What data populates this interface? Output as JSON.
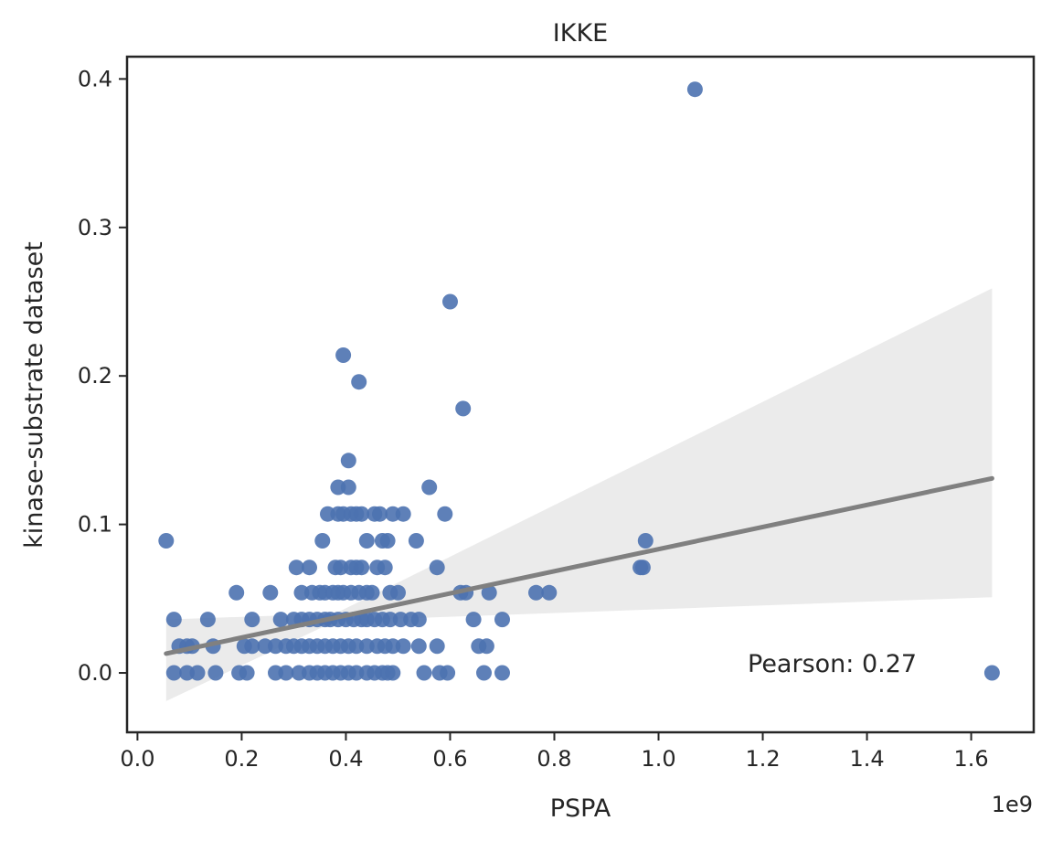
{
  "chart_data": {
    "type": "scatter",
    "title": "IKKE",
    "xlabel": "PSPA",
    "ylabel": "kinase-substrate dataset",
    "x_offset_text": "1e9",
    "annotation": "Pearson: 0.27",
    "xlim": [
      -0.02,
      1.72
    ],
    "ylim": [
      -0.04,
      0.415
    ],
    "x_ticks": [
      0.0,
      0.2,
      0.4,
      0.6,
      0.8,
      1.0,
      1.2,
      1.4,
      1.6
    ],
    "x_tick_labels": [
      "0.0",
      "0.2",
      "0.4",
      "0.6",
      "0.8",
      "1.0",
      "1.2",
      "1.4",
      "1.6"
    ],
    "y_ticks": [
      0.0,
      0.1,
      0.2,
      0.3,
      0.4
    ],
    "y_tick_labels": [
      "0.0",
      "0.1",
      "0.2",
      "0.3",
      "0.4"
    ],
    "grid": false,
    "colors": {
      "points": "#4c72b0",
      "regression_line": "#808080",
      "confidence_band": "#ebebeb"
    },
    "regression": {
      "x": [
        0.055,
        1.64
      ],
      "y": [
        0.013,
        0.131
      ],
      "ci_lower": [
        -0.019,
        0.051
      ],
      "ci_upper": [
        0.036,
        0.259
      ],
      "ci_knee": [
        0.38,
        0.035,
        0.04
      ]
    },
    "points": [
      [
        1.07,
        0.393
      ],
      [
        0.6,
        0.25
      ],
      [
        0.395,
        0.214
      ],
      [
        0.425,
        0.196
      ],
      [
        0.625,
        0.178
      ],
      [
        0.405,
        0.143
      ],
      [
        0.055,
        0.089
      ],
      [
        0.975,
        0.089
      ],
      [
        0.965,
        0.071
      ],
      [
        0.97,
        0.071
      ],
      [
        1.64,
        0.0
      ],
      [
        0.385,
        0.125
      ],
      [
        0.405,
        0.125
      ],
      [
        0.56,
        0.125
      ],
      [
        0.365,
        0.107
      ],
      [
        0.385,
        0.107
      ],
      [
        0.395,
        0.107
      ],
      [
        0.41,
        0.107
      ],
      [
        0.42,
        0.107
      ],
      [
        0.43,
        0.107
      ],
      [
        0.455,
        0.107
      ],
      [
        0.465,
        0.107
      ],
      [
        0.49,
        0.107
      ],
      [
        0.51,
        0.107
      ],
      [
        0.59,
        0.107
      ],
      [
        0.355,
        0.089
      ],
      [
        0.44,
        0.089
      ],
      [
        0.47,
        0.089
      ],
      [
        0.48,
        0.089
      ],
      [
        0.535,
        0.089
      ],
      [
        0.305,
        0.071
      ],
      [
        0.33,
        0.071
      ],
      [
        0.38,
        0.071
      ],
      [
        0.39,
        0.071
      ],
      [
        0.41,
        0.071
      ],
      [
        0.42,
        0.071
      ],
      [
        0.43,
        0.071
      ],
      [
        0.46,
        0.071
      ],
      [
        0.475,
        0.071
      ],
      [
        0.575,
        0.071
      ],
      [
        0.19,
        0.054
      ],
      [
        0.255,
        0.054
      ],
      [
        0.315,
        0.054
      ],
      [
        0.335,
        0.054
      ],
      [
        0.35,
        0.054
      ],
      [
        0.36,
        0.054
      ],
      [
        0.375,
        0.054
      ],
      [
        0.385,
        0.054
      ],
      [
        0.395,
        0.054
      ],
      [
        0.41,
        0.054
      ],
      [
        0.425,
        0.054
      ],
      [
        0.44,
        0.054
      ],
      [
        0.45,
        0.054
      ],
      [
        0.485,
        0.054
      ],
      [
        0.5,
        0.054
      ],
      [
        0.62,
        0.054
      ],
      [
        0.63,
        0.054
      ],
      [
        0.675,
        0.054
      ],
      [
        0.765,
        0.054
      ],
      [
        0.79,
        0.054
      ],
      [
        0.07,
        0.036
      ],
      [
        0.135,
        0.036
      ],
      [
        0.22,
        0.036
      ],
      [
        0.275,
        0.036
      ],
      [
        0.3,
        0.036
      ],
      [
        0.315,
        0.036
      ],
      [
        0.33,
        0.036
      ],
      [
        0.345,
        0.036
      ],
      [
        0.36,
        0.036
      ],
      [
        0.37,
        0.036
      ],
      [
        0.385,
        0.036
      ],
      [
        0.4,
        0.036
      ],
      [
        0.415,
        0.036
      ],
      [
        0.43,
        0.036
      ],
      [
        0.44,
        0.036
      ],
      [
        0.455,
        0.036
      ],
      [
        0.47,
        0.036
      ],
      [
        0.485,
        0.036
      ],
      [
        0.505,
        0.036
      ],
      [
        0.525,
        0.036
      ],
      [
        0.54,
        0.036
      ],
      [
        0.645,
        0.036
      ],
      [
        0.7,
        0.036
      ],
      [
        0.08,
        0.018
      ],
      [
        0.095,
        0.018
      ],
      [
        0.105,
        0.018
      ],
      [
        0.145,
        0.018
      ],
      [
        0.205,
        0.018
      ],
      [
        0.22,
        0.018
      ],
      [
        0.245,
        0.018
      ],
      [
        0.265,
        0.018
      ],
      [
        0.285,
        0.018
      ],
      [
        0.3,
        0.018
      ],
      [
        0.315,
        0.018
      ],
      [
        0.33,
        0.018
      ],
      [
        0.345,
        0.018
      ],
      [
        0.36,
        0.018
      ],
      [
        0.375,
        0.018
      ],
      [
        0.39,
        0.018
      ],
      [
        0.405,
        0.018
      ],
      [
        0.42,
        0.018
      ],
      [
        0.44,
        0.018
      ],
      [
        0.46,
        0.018
      ],
      [
        0.475,
        0.018
      ],
      [
        0.49,
        0.018
      ],
      [
        0.51,
        0.018
      ],
      [
        0.54,
        0.018
      ],
      [
        0.575,
        0.018
      ],
      [
        0.655,
        0.018
      ],
      [
        0.67,
        0.018
      ],
      [
        0.07,
        0.0
      ],
      [
        0.095,
        0.0
      ],
      [
        0.115,
        0.0
      ],
      [
        0.15,
        0.0
      ],
      [
        0.195,
        0.0
      ],
      [
        0.21,
        0.0
      ],
      [
        0.265,
        0.0
      ],
      [
        0.285,
        0.0
      ],
      [
        0.31,
        0.0
      ],
      [
        0.33,
        0.0
      ],
      [
        0.345,
        0.0
      ],
      [
        0.36,
        0.0
      ],
      [
        0.375,
        0.0
      ],
      [
        0.39,
        0.0
      ],
      [
        0.405,
        0.0
      ],
      [
        0.42,
        0.0
      ],
      [
        0.44,
        0.0
      ],
      [
        0.455,
        0.0
      ],
      [
        0.47,
        0.0
      ],
      [
        0.48,
        0.0
      ],
      [
        0.49,
        0.0
      ],
      [
        0.55,
        0.0
      ],
      [
        0.58,
        0.0
      ],
      [
        0.595,
        0.0
      ],
      [
        0.665,
        0.0
      ],
      [
        0.7,
        0.0
      ]
    ]
  }
}
